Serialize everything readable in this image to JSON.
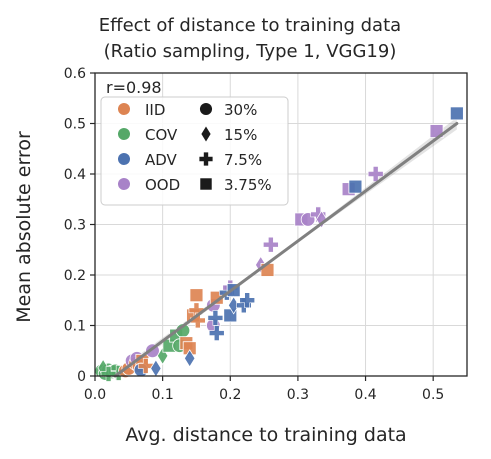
{
  "chart_data": {
    "type": "scatter",
    "title_lines": [
      "Effect of distance to training data",
      "(Ratio sampling, Type 1, VGG19)"
    ],
    "xlabel": "Avg. distance to training data",
    "ylabel": "Mean absolute error",
    "xlim": [
      0,
      0.55
    ],
    "ylim": [
      0,
      0.6
    ],
    "xticks": [
      0.0,
      0.1,
      0.2,
      0.3,
      0.4,
      0.5
    ],
    "xtick_labels": [
      "0.0",
      "0.1",
      "0.2",
      "0.3",
      "0.4",
      "0.5"
    ],
    "yticks": [
      0,
      0.1,
      0.2,
      0.3,
      0.4,
      0.5,
      0.6
    ],
    "ytick_labels": [
      "0",
      "0.1",
      "0.2",
      "0.3",
      "0.4",
      "0.5",
      "0.6"
    ],
    "grid": true,
    "annotation": "r=0.98",
    "regression": {
      "x": [
        0.03,
        0.535
      ],
      "y": [
        0.0,
        0.5
      ],
      "color": "#808080"
    },
    "legend": {
      "placement": "upper-left",
      "hue": [
        {
          "label": "IID",
          "color": "#dd8452"
        },
        {
          "label": "COV",
          "color": "#55a868"
        },
        {
          "label": "ADV",
          "color": "#4c72b0"
        },
        {
          "label": "OOD",
          "color": "#a882c8"
        }
      ],
      "style": [
        {
          "label": "30%",
          "marker": "circle"
        },
        {
          "label": "15%",
          "marker": "diamond"
        },
        {
          "label": "7.5%",
          "marker": "plus"
        },
        {
          "label": "3.75%",
          "marker": "square"
        }
      ]
    },
    "points": [
      {
        "x": 0.01,
        "y": 0.01,
        "hue": "COV",
        "marker": "circle"
      },
      {
        "x": 0.015,
        "y": 0.005,
        "hue": "COV",
        "marker": "circle"
      },
      {
        "x": 0.02,
        "y": 0.012,
        "hue": "COV",
        "marker": "circle"
      },
      {
        "x": 0.025,
        "y": 0.008,
        "hue": "COV",
        "marker": "circle"
      },
      {
        "x": 0.03,
        "y": 0.01,
        "hue": "COV",
        "marker": "circle"
      },
      {
        "x": 0.012,
        "y": 0.016,
        "hue": "COV",
        "marker": "diamond"
      },
      {
        "x": 0.035,
        "y": 0.006,
        "hue": "COV",
        "marker": "plus"
      },
      {
        "x": 0.02,
        "y": 0.004,
        "hue": "COV",
        "marker": "plus"
      },
      {
        "x": 0.045,
        "y": 0.01,
        "hue": "IID",
        "marker": "circle"
      },
      {
        "x": 0.05,
        "y": 0.015,
        "hue": "IID",
        "marker": "circle"
      },
      {
        "x": 0.055,
        "y": 0.03,
        "hue": "OOD",
        "marker": "circle"
      },
      {
        "x": 0.06,
        "y": 0.025,
        "hue": "IID",
        "marker": "circle"
      },
      {
        "x": 0.062,
        "y": 0.035,
        "hue": "OOD",
        "marker": "circle"
      },
      {
        "x": 0.065,
        "y": 0.02,
        "hue": "IID",
        "marker": "circle"
      },
      {
        "x": 0.07,
        "y": 0.03,
        "hue": "IID",
        "marker": "square"
      },
      {
        "x": 0.068,
        "y": 0.012,
        "hue": "ADV",
        "marker": "circle"
      },
      {
        "x": 0.075,
        "y": 0.02,
        "hue": "IID",
        "marker": "plus"
      },
      {
        "x": 0.085,
        "y": 0.05,
        "hue": "OOD",
        "marker": "circle"
      },
      {
        "x": 0.09,
        "y": 0.015,
        "hue": "ADV",
        "marker": "diamond"
      },
      {
        "x": 0.1,
        "y": 0.04,
        "hue": "COV",
        "marker": "diamond"
      },
      {
        "x": 0.11,
        "y": 0.06,
        "hue": "COV",
        "marker": "square"
      },
      {
        "x": 0.12,
        "y": 0.08,
        "hue": "COV",
        "marker": "square"
      },
      {
        "x": 0.125,
        "y": 0.06,
        "hue": "COV",
        "marker": "circle"
      },
      {
        "x": 0.13,
        "y": 0.09,
        "hue": "COV",
        "marker": "circle"
      },
      {
        "x": 0.135,
        "y": 0.065,
        "hue": "IID",
        "marker": "square"
      },
      {
        "x": 0.14,
        "y": 0.055,
        "hue": "IID",
        "marker": "square"
      },
      {
        "x": 0.14,
        "y": 0.035,
        "hue": "ADV",
        "marker": "diamond"
      },
      {
        "x": 0.145,
        "y": 0.12,
        "hue": "IID",
        "marker": "square"
      },
      {
        "x": 0.15,
        "y": 0.16,
        "hue": "IID",
        "marker": "square"
      },
      {
        "x": 0.15,
        "y": 0.13,
        "hue": "IID",
        "marker": "plus"
      },
      {
        "x": 0.152,
        "y": 0.11,
        "hue": "IID",
        "marker": "plus"
      },
      {
        "x": 0.175,
        "y": 0.14,
        "hue": "OOD",
        "marker": "circle"
      },
      {
        "x": 0.175,
        "y": 0.1,
        "hue": "OOD",
        "marker": "circle"
      },
      {
        "x": 0.178,
        "y": 0.115,
        "hue": "ADV",
        "marker": "plus"
      },
      {
        "x": 0.18,
        "y": 0.085,
        "hue": "ADV",
        "marker": "plus"
      },
      {
        "x": 0.18,
        "y": 0.155,
        "hue": "IID",
        "marker": "square"
      },
      {
        "x": 0.195,
        "y": 0.165,
        "hue": "ADV",
        "marker": "plus"
      },
      {
        "x": 0.2,
        "y": 0.12,
        "hue": "ADV",
        "marker": "square"
      },
      {
        "x": 0.2,
        "y": 0.175,
        "hue": "OOD",
        "marker": "plus"
      },
      {
        "x": 0.205,
        "y": 0.17,
        "hue": "ADV",
        "marker": "square"
      },
      {
        "x": 0.205,
        "y": 0.14,
        "hue": "ADV",
        "marker": "diamond"
      },
      {
        "x": 0.22,
        "y": 0.14,
        "hue": "ADV",
        "marker": "plus"
      },
      {
        "x": 0.225,
        "y": 0.15,
        "hue": "ADV",
        "marker": "plus"
      },
      {
        "x": 0.245,
        "y": 0.22,
        "hue": "OOD",
        "marker": "diamond"
      },
      {
        "x": 0.255,
        "y": 0.21,
        "hue": "IID",
        "marker": "square"
      },
      {
        "x": 0.26,
        "y": 0.26,
        "hue": "OOD",
        "marker": "plus"
      },
      {
        "x": 0.305,
        "y": 0.31,
        "hue": "OOD",
        "marker": "square"
      },
      {
        "x": 0.315,
        "y": 0.31,
        "hue": "OOD",
        "marker": "circle"
      },
      {
        "x": 0.33,
        "y": 0.32,
        "hue": "OOD",
        "marker": "plus"
      },
      {
        "x": 0.335,
        "y": 0.31,
        "hue": "OOD",
        "marker": "diamond"
      },
      {
        "x": 0.375,
        "y": 0.37,
        "hue": "OOD",
        "marker": "square"
      },
      {
        "x": 0.385,
        "y": 0.375,
        "hue": "ADV",
        "marker": "square"
      },
      {
        "x": 0.415,
        "y": 0.4,
        "hue": "OOD",
        "marker": "plus"
      },
      {
        "x": 0.505,
        "y": 0.485,
        "hue": "OOD",
        "marker": "square"
      },
      {
        "x": 0.535,
        "y": 0.52,
        "hue": "ADV",
        "marker": "square"
      }
    ]
  }
}
